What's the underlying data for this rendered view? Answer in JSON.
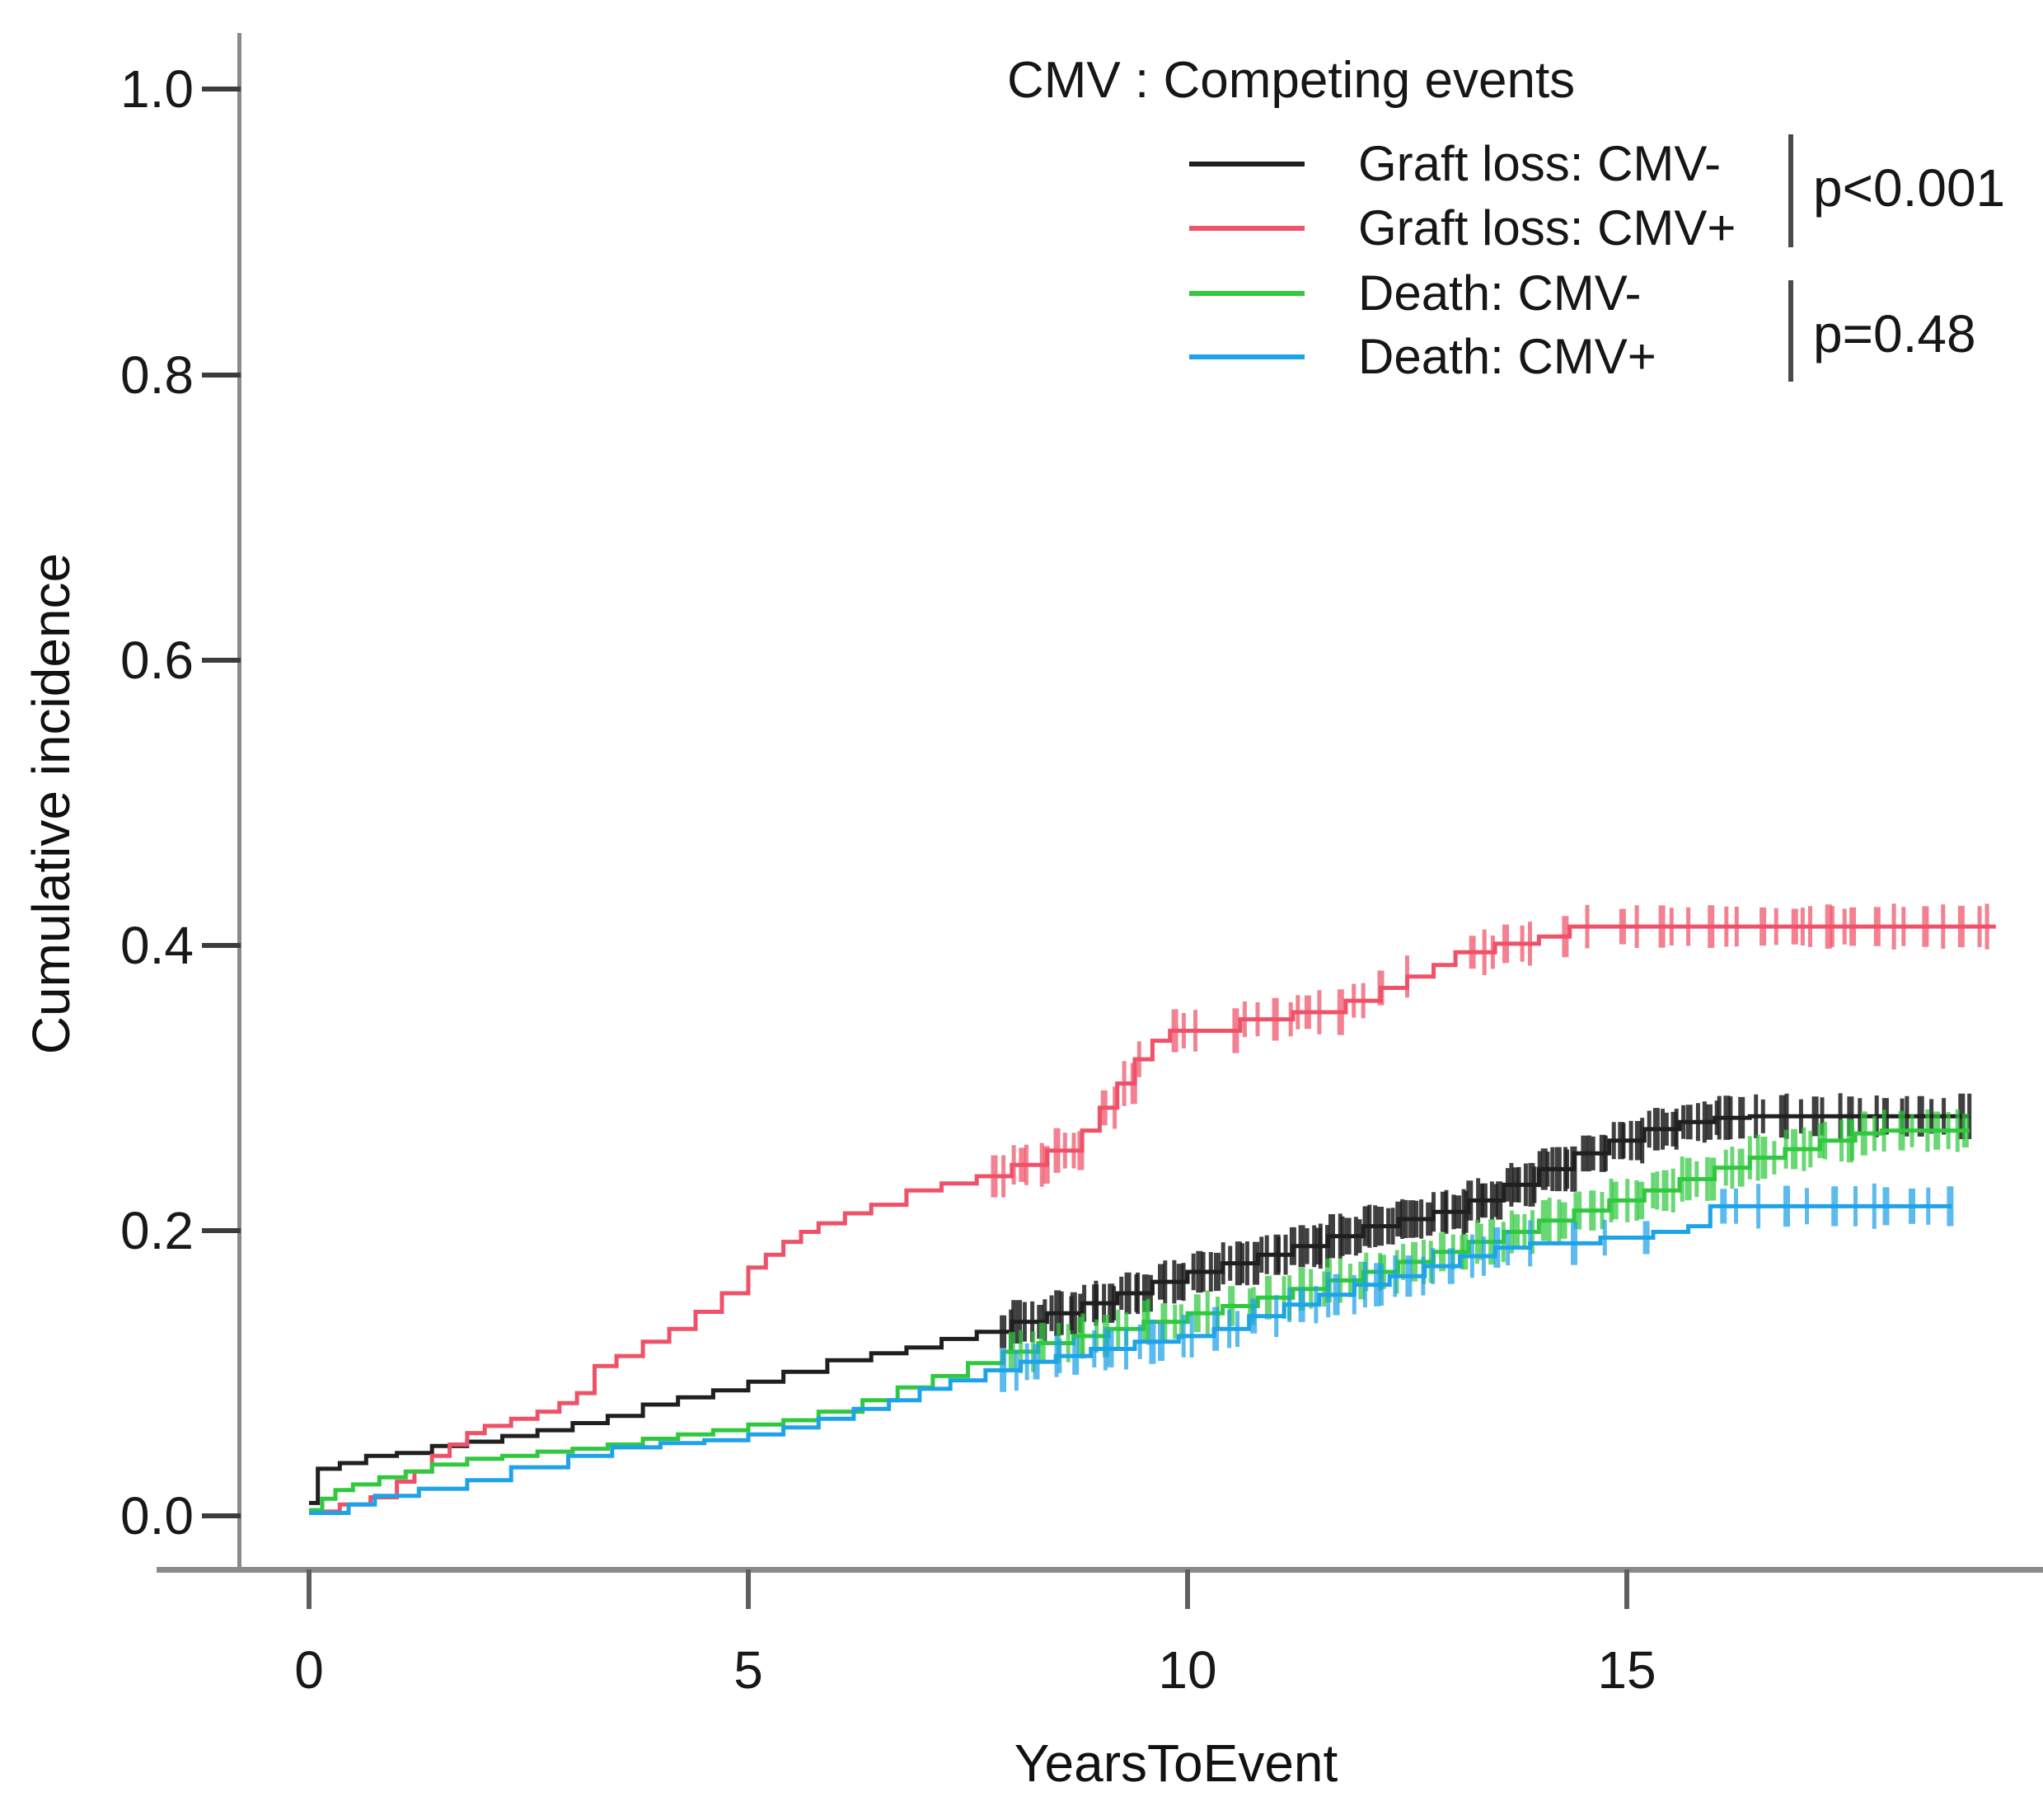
{
  "chart_data": {
    "type": "line",
    "step": true,
    "title": "",
    "xlabel": "YearsToEvent",
    "ylabel": "Cumulative incidence",
    "xlim": [
      0,
      19.5
    ],
    "ylim": [
      0,
      1.05
    ],
    "grid": false,
    "xtick_labels": [
      "0",
      "5",
      "10",
      "15"
    ],
    "xtick_values": [
      0,
      5,
      10,
      15
    ],
    "ytick_labels": [
      "1.0",
      "0.8",
      "0.6",
      "0.4",
      "0.2",
      "0.0"
    ],
    "ytick_values": [
      1.0,
      0.8,
      0.6,
      0.4,
      0.2,
      0.0
    ],
    "legend": {
      "title": "CMV : Competing events",
      "position": "top-right"
    },
    "p_values": [
      {
        "label": "p<0.001",
        "applies_to": [
          "Graft loss: CMV-",
          "Graft loss: CMV+"
        ]
      },
      {
        "label": "p=0.48",
        "applies_to": [
          "Death: CMV-",
          "Death: CMV+"
        ]
      }
    ],
    "series": [
      {
        "name": "Graft loss: CMV-",
        "color": "#1f1f1f",
        "points": [
          [
            0,
            0.009
          ],
          [
            0.1,
            0.033
          ],
          [
            0.35,
            0.037
          ],
          [
            0.65,
            0.042
          ],
          [
            1.0,
            0.044
          ],
          [
            1.4,
            0.049
          ],
          [
            1.8,
            0.052
          ],
          [
            2.2,
            0.056
          ],
          [
            2.6,
            0.06
          ],
          [
            3.0,
            0.065
          ],
          [
            3.4,
            0.07
          ],
          [
            3.8,
            0.078
          ],
          [
            4.2,
            0.083
          ],
          [
            4.6,
            0.088
          ],
          [
            5.0,
            0.094
          ],
          [
            5.4,
            0.101
          ],
          [
            5.9,
            0.109
          ],
          [
            6.4,
            0.114
          ],
          [
            6.8,
            0.118
          ],
          [
            7.2,
            0.124
          ],
          [
            7.6,
            0.129
          ],
          [
            8.0,
            0.136
          ],
          [
            8.4,
            0.142
          ],
          [
            8.8,
            0.149
          ],
          [
            9.2,
            0.156
          ],
          [
            9.6,
            0.164
          ],
          [
            10.0,
            0.171
          ],
          [
            10.4,
            0.177
          ],
          [
            10.8,
            0.183
          ],
          [
            11.2,
            0.189
          ],
          [
            11.6,
            0.196
          ],
          [
            12.0,
            0.203
          ],
          [
            12.4,
            0.208
          ],
          [
            12.8,
            0.213
          ],
          [
            13.2,
            0.221
          ],
          [
            13.6,
            0.232
          ],
          [
            14.0,
            0.243
          ],
          [
            14.4,
            0.254
          ],
          [
            14.8,
            0.263
          ],
          [
            15.2,
            0.271
          ],
          [
            15.6,
            0.276
          ],
          [
            16.0,
            0.279
          ],
          [
            16.4,
            0.28
          ],
          [
            18.9,
            0.28
          ]
        ],
        "censor_clusters": [
          [
            7.9,
            9.6,
            26
          ],
          [
            9.7,
            11.2,
            22
          ],
          [
            11.3,
            12.8,
            26
          ],
          [
            12.9,
            14.4,
            28
          ],
          [
            14.5,
            16.2,
            26
          ],
          [
            16.3,
            18.9,
            20
          ]
        ]
      },
      {
        "name": "Graft loss: CMV+",
        "color": "#ef5168",
        "points": [
          [
            0,
            0.003
          ],
          [
            0.35,
            0.008
          ],
          [
            0.7,
            0.013
          ],
          [
            1.0,
            0.024
          ],
          [
            1.2,
            0.031
          ],
          [
            1.4,
            0.042
          ],
          [
            1.6,
            0.05
          ],
          [
            1.8,
            0.058
          ],
          [
            2.0,
            0.063
          ],
          [
            2.3,
            0.068
          ],
          [
            2.6,
            0.073
          ],
          [
            2.85,
            0.079
          ],
          [
            3.05,
            0.086
          ],
          [
            3.25,
            0.105
          ],
          [
            3.5,
            0.112
          ],
          [
            3.8,
            0.122
          ],
          [
            4.1,
            0.131
          ],
          [
            4.4,
            0.143
          ],
          [
            4.7,
            0.156
          ],
          [
            5.0,
            0.174
          ],
          [
            5.2,
            0.183
          ],
          [
            5.4,
            0.192
          ],
          [
            5.6,
            0.199
          ],
          [
            5.8,
            0.205
          ],
          [
            6.1,
            0.212
          ],
          [
            6.4,
            0.218
          ],
          [
            6.8,
            0.228
          ],
          [
            7.2,
            0.233
          ],
          [
            7.6,
            0.238
          ],
          [
            8.0,
            0.246
          ],
          [
            8.4,
            0.256
          ],
          [
            8.8,
            0.27
          ],
          [
            9.0,
            0.286
          ],
          [
            9.2,
            0.303
          ],
          [
            9.4,
            0.32
          ],
          [
            9.6,
            0.333
          ],
          [
            9.8,
            0.34
          ],
          [
            10.6,
            0.348
          ],
          [
            11.2,
            0.353
          ],
          [
            11.8,
            0.361
          ],
          [
            12.2,
            0.37
          ],
          [
            12.5,
            0.378
          ],
          [
            12.8,
            0.386
          ],
          [
            13.05,
            0.395
          ],
          [
            13.5,
            0.401
          ],
          [
            14.0,
            0.406
          ],
          [
            14.35,
            0.413
          ],
          [
            19.2,
            0.413
          ]
        ],
        "censor_clusters": [
          [
            7.8,
            8.4,
            7
          ],
          [
            8.5,
            8.8,
            4
          ],
          [
            9.05,
            9.45,
            5
          ],
          [
            9.85,
            10.15,
            3
          ],
          [
            10.5,
            10.8,
            3
          ],
          [
            11.0,
            11.5,
            5
          ],
          [
            11.7,
            12.0,
            3
          ],
          [
            12.2,
            12.5,
            2
          ],
          [
            13.2,
            13.9,
            6
          ],
          [
            14.3,
            14.55,
            2
          ],
          [
            14.9,
            15.15,
            2
          ],
          [
            15.4,
            15.7,
            3
          ],
          [
            15.95,
            16.25,
            3
          ],
          [
            16.5,
            16.7,
            2
          ],
          [
            16.9,
            17.6,
            7
          ],
          [
            17.85,
            18.15,
            3
          ],
          [
            18.4,
            18.6,
            2
          ],
          [
            18.8,
            19.1,
            3
          ]
        ]
      },
      {
        "name": "Death: CMV-",
        "color": "#30c83e",
        "points": [
          [
            0,
            0.004
          ],
          [
            0.15,
            0.012
          ],
          [
            0.3,
            0.018
          ],
          [
            0.5,
            0.022
          ],
          [
            0.8,
            0.027
          ],
          [
            1.1,
            0.031
          ],
          [
            1.4,
            0.036
          ],
          [
            1.8,
            0.04
          ],
          [
            2.2,
            0.042
          ],
          [
            2.6,
            0.045
          ],
          [
            3.0,
            0.047
          ],
          [
            3.4,
            0.05
          ],
          [
            3.8,
            0.054
          ],
          [
            4.2,
            0.057
          ],
          [
            4.6,
            0.06
          ],
          [
            5.0,
            0.064
          ],
          [
            5.4,
            0.067
          ],
          [
            5.8,
            0.073
          ],
          [
            6.3,
            0.081
          ],
          [
            6.7,
            0.09
          ],
          [
            7.1,
            0.098
          ],
          [
            7.5,
            0.107
          ],
          [
            7.9,
            0.115
          ],
          [
            8.3,
            0.121
          ],
          [
            8.7,
            0.126
          ],
          [
            9.1,
            0.131
          ],
          [
            9.5,
            0.136
          ],
          [
            10.0,
            0.142
          ],
          [
            10.4,
            0.147
          ],
          [
            10.8,
            0.153
          ],
          [
            11.2,
            0.159
          ],
          [
            11.6,
            0.165
          ],
          [
            12.0,
            0.171
          ],
          [
            12.4,
            0.178
          ],
          [
            12.8,
            0.185
          ],
          [
            13.2,
            0.192
          ],
          [
            13.6,
            0.199
          ],
          [
            14.0,
            0.207
          ],
          [
            14.4,
            0.214
          ],
          [
            14.8,
            0.221
          ],
          [
            15.2,
            0.228
          ],
          [
            15.6,
            0.236
          ],
          [
            16.0,
            0.244
          ],
          [
            16.4,
            0.251
          ],
          [
            16.8,
            0.257
          ],
          [
            17.2,
            0.263
          ],
          [
            17.6,
            0.268
          ],
          [
            17.9,
            0.27
          ],
          [
            18.9,
            0.27
          ]
        ],
        "censor_clusters": [
          [
            8.0,
            9.6,
            14
          ],
          [
            9.7,
            11.2,
            12
          ],
          [
            11.3,
            12.8,
            15
          ],
          [
            12.9,
            14.5,
            18
          ],
          [
            14.6,
            16.2,
            18
          ],
          [
            16.3,
            17.6,
            14
          ],
          [
            17.7,
            18.9,
            10
          ]
        ]
      },
      {
        "name": "Death: CMV+",
        "color": "#1ea2e8",
        "points": [
          [
            0,
            0.002
          ],
          [
            0.45,
            0.008
          ],
          [
            0.75,
            0.014
          ],
          [
            1.25,
            0.019
          ],
          [
            1.8,
            0.025
          ],
          [
            2.3,
            0.034
          ],
          [
            2.95,
            0.042
          ],
          [
            3.45,
            0.048
          ],
          [
            4.0,
            0.051
          ],
          [
            4.5,
            0.053
          ],
          [
            5.0,
            0.057
          ],
          [
            5.4,
            0.062
          ],
          [
            5.8,
            0.068
          ],
          [
            6.2,
            0.075
          ],
          [
            6.6,
            0.081
          ],
          [
            6.95,
            0.089
          ],
          [
            7.3,
            0.095
          ],
          [
            7.7,
            0.102
          ],
          [
            8.1,
            0.108
          ],
          [
            8.5,
            0.112
          ],
          [
            8.9,
            0.117
          ],
          [
            9.4,
            0.122
          ],
          [
            9.9,
            0.126
          ],
          [
            10.3,
            0.131
          ],
          [
            10.7,
            0.14
          ],
          [
            11.1,
            0.148
          ],
          [
            11.5,
            0.155
          ],
          [
            11.9,
            0.162
          ],
          [
            12.3,
            0.168
          ],
          [
            12.7,
            0.175
          ],
          [
            13.1,
            0.182
          ],
          [
            13.5,
            0.188
          ],
          [
            13.9,
            0.191
          ],
          [
            14.7,
            0.195
          ],
          [
            15.3,
            0.199
          ],
          [
            15.7,
            0.203
          ],
          [
            15.95,
            0.217
          ],
          [
            18.7,
            0.217
          ]
        ],
        "censor_clusters": [
          [
            7.9,
            9.6,
            13
          ],
          [
            9.7,
            11.2,
            9
          ],
          [
            11.3,
            12.8,
            12
          ],
          [
            13.0,
            13.9,
            6
          ],
          [
            14.4,
            14.75,
            2
          ],
          [
            15.05,
            15.25,
            1
          ],
          [
            16.1,
            16.55,
            3
          ],
          [
            16.8,
            17.05,
            2
          ],
          [
            17.3,
            17.95,
            4
          ],
          [
            18.2,
            18.45,
            2
          ],
          [
            18.6,
            18.7,
            1
          ]
        ]
      }
    ]
  }
}
